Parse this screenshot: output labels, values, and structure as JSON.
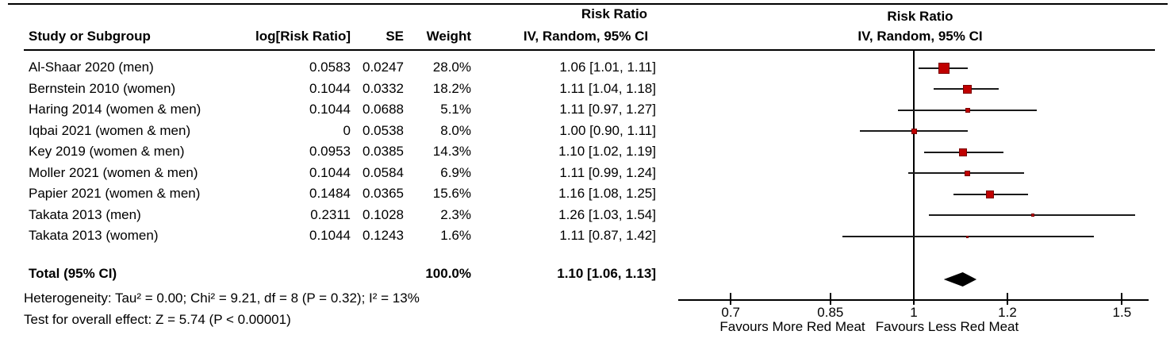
{
  "colors": {
    "background": "#ffffff",
    "text": "#000000",
    "square_fill": "#c00000",
    "square_border": "#7a0000",
    "ci_line": "#1a1a1a",
    "reference_line": "#000000"
  },
  "table": {
    "headers": {
      "study": "Study or Subgroup",
      "log_rr": "log[Risk Ratio]",
      "se": "SE",
      "weight": "Weight",
      "rr_line1": "Risk Ratio",
      "rr_line2": "IV, Random, 95% CI"
    }
  },
  "plot_header": {
    "line1": "Risk Ratio",
    "line2": "IV, Random, 95% CI"
  },
  "chart_data": {
    "type": "scatter",
    "subtype": "forest-plot",
    "title": "Risk Ratio",
    "subtitle": "IV, Random, 95% CI",
    "x_scale": "log10",
    "x_ticks": [
      "0.7",
      "0.85",
      "1",
      "1.2",
      "1.5"
    ],
    "x_tick_values": [
      0.7,
      0.85,
      1,
      1.2,
      1.5
    ],
    "xlim": [
      0.63,
      1.58
    ],
    "reference_line": 1,
    "studies": [
      {
        "name": "Al-Shaar 2020 (men)",
        "log_rr": "0.0583",
        "se": "0.0247",
        "weight": "28.0%",
        "ci_text": "1.06 [1.01, 1.11]",
        "rr": 1.06,
        "lo": 1.01,
        "hi": 1.11,
        "w": 28.0
      },
      {
        "name": "Bernstein 2010 (women)",
        "log_rr": "0.1044",
        "se": "0.0332",
        "weight": "18.2%",
        "ci_text": "1.11 [1.04, 1.18]",
        "rr": 1.11,
        "lo": 1.04,
        "hi": 1.18,
        "w": 18.2
      },
      {
        "name": "Haring 2014 (women & men)",
        "log_rr": "0.1044",
        "se": "0.0688",
        "weight": "5.1%",
        "ci_text": "1.11 [0.97, 1.27]",
        "rr": 1.11,
        "lo": 0.97,
        "hi": 1.27,
        "w": 5.1
      },
      {
        "name": "Iqbai 2021 (women & men)",
        "log_rr": "0",
        "se": "0.0538",
        "weight": "8.0%",
        "ci_text": "1.00 [0.90, 1.11]",
        "rr": 1.0,
        "lo": 0.9,
        "hi": 1.11,
        "w": 8.0
      },
      {
        "name": "Key 2019 (women & men)",
        "log_rr": "0.0953",
        "se": "0.0385",
        "weight": "14.3%",
        "ci_text": "1.10 [1.02, 1.19]",
        "rr": 1.1,
        "lo": 1.02,
        "hi": 1.19,
        "w": 14.3
      },
      {
        "name": "Moller 2021 (women & men)",
        "log_rr": "0.1044",
        "se": "0.0584",
        "weight": "6.9%",
        "ci_text": "1.11 [0.99, 1.24]",
        "rr": 1.11,
        "lo": 0.99,
        "hi": 1.24,
        "w": 6.9
      },
      {
        "name": "Papier 2021 (women & men)",
        "log_rr": "0.1484",
        "se": "0.0365",
        "weight": "15.6%",
        "ci_text": "1.16 [1.08, 1.25]",
        "rr": 1.16,
        "lo": 1.08,
        "hi": 1.25,
        "w": 15.6
      },
      {
        "name": "Takata 2013 (men)",
        "log_rr": "0.2311",
        "se": "0.1028",
        "weight": "2.3%",
        "ci_text": "1.26 [1.03, 1.54]",
        "rr": 1.26,
        "lo": 1.03,
        "hi": 1.54,
        "w": 2.3
      },
      {
        "name": "Takata 2013 (women)",
        "log_rr": "0.1044",
        "se": "0.1243",
        "weight": "1.6%",
        "ci_text": "1.11 [0.87, 1.42]",
        "rr": 1.11,
        "lo": 0.87,
        "hi": 1.42,
        "w": 1.6
      }
    ],
    "total": {
      "name": "Total (95% CI)",
      "weight": "100.0%",
      "ci_text": "1.10 [1.06, 1.13]",
      "rr": 1.1,
      "lo": 1.06,
      "hi": 1.13
    },
    "axis_labels": {
      "left": "Favours More Red Meat",
      "right": "Favours Less Red Meat"
    }
  },
  "footer": {
    "heterogeneity": "Heterogeneity: Tau² = 0.00; Chi² = 9.21, df = 8 (P = 0.32); I² = 13%",
    "overall_effect": "Test for overall effect: Z = 5.74 (P < 0.00001)"
  }
}
